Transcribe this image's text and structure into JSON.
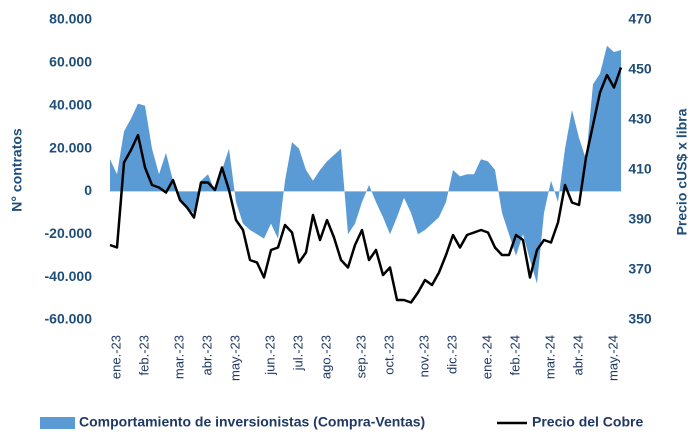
{
  "chart_data": {
    "type": "area-line",
    "y_label": "N° contratos",
    "y2_label": "Precio cUS$ x libra",
    "categories": [
      null,
      "ene.-23",
      null,
      null,
      null,
      "feb.-23",
      null,
      null,
      null,
      null,
      "mar.-23",
      null,
      null,
      null,
      "abr.-23",
      null,
      null,
      null,
      "may.-23",
      null,
      null,
      null,
      null,
      "jun.-23",
      null,
      null,
      null,
      "jul.-23",
      null,
      null,
      null,
      "ago.-23",
      null,
      null,
      null,
      null,
      "sep.-23",
      null,
      null,
      null,
      "oct.-23",
      null,
      null,
      null,
      null,
      "nov.-23",
      null,
      null,
      null,
      "dic.-23",
      null,
      null,
      null,
      null,
      "ene.-24",
      null,
      null,
      null,
      "feb.-24",
      null,
      null,
      null,
      null,
      "mar.-24",
      null,
      null,
      null,
      "abr.-24",
      null,
      null,
      null,
      null,
      "may.-24",
      null
    ],
    "series": [
      {
        "name": "Comportamiento de inversionistas (Compra-Ventas)",
        "color": "#5b9bd5",
        "type": "area",
        "values": [
          15000,
          8000,
          28000,
          34000,
          41000,
          40000,
          20000,
          8000,
          18000,
          5000,
          -5000,
          -8000,
          -10000,
          5000,
          8000,
          0,
          10000,
          20000,
          -5000,
          -15000,
          -18000,
          -20000,
          -22000,
          -15000,
          -22000,
          5000,
          23000,
          20000,
          10000,
          5000,
          10000,
          14000,
          17000,
          20000,
          -20000,
          -15000,
          -5000,
          3000,
          -5000,
          -12000,
          -20000,
          -12000,
          -3000,
          -10000,
          -20000,
          -18000,
          -15000,
          -12000,
          -5000,
          10000,
          7000,
          8000,
          8000,
          15000,
          14000,
          10000,
          -10000,
          -20000,
          -30000,
          -20000,
          -32000,
          -43000,
          -10000,
          5000,
          -5000,
          20000,
          38000,
          25000,
          15000,
          50000,
          55000,
          68000,
          65000,
          66000
        ]
      },
      {
        "name": "Precio del Cobre",
        "color": "#000000",
        "type": "line",
        "axis": "y2",
        "values": [
          380,
          379,
          413,
          418,
          424,
          411,
          404,
          403,
          401,
          406,
          398,
          395,
          391,
          405,
          405,
          402,
          411,
          402,
          390,
          386,
          374,
          373,
          367,
          378,
          379,
          388,
          385,
          373,
          377,
          392,
          382,
          390,
          383,
          374,
          371,
          380,
          386,
          374,
          378,
          368,
          371,
          358,
          358,
          357,
          361,
          366,
          364,
          369,
          376,
          384,
          379,
          384,
          385,
          386,
          385,
          379,
          376,
          376,
          384,
          382,
          367,
          378,
          382,
          381,
          389,
          404,
          397,
          396,
          415,
          428,
          441,
          448,
          443,
          451
        ]
      }
    ],
    "ylim": [
      -60000,
      80000
    ],
    "yticks": [
      {
        "value": -60000,
        "label": "-60.000"
      },
      {
        "value": -40000,
        "label": "-40.000"
      },
      {
        "value": -20000,
        "label": "-20.000"
      },
      0,
      {
        "value": 20000,
        "label": "20.000"
      },
      {
        "value": 40000,
        "label": "40.000"
      },
      {
        "value": 60000,
        "label": "60.000"
      },
      {
        "value": 80000,
        "label": "80.000"
      }
    ],
    "y2lim": [
      350,
      470
    ],
    "y2ticks": [
      350,
      370,
      390,
      410,
      430,
      450,
      470
    ],
    "legend": "bottom"
  }
}
